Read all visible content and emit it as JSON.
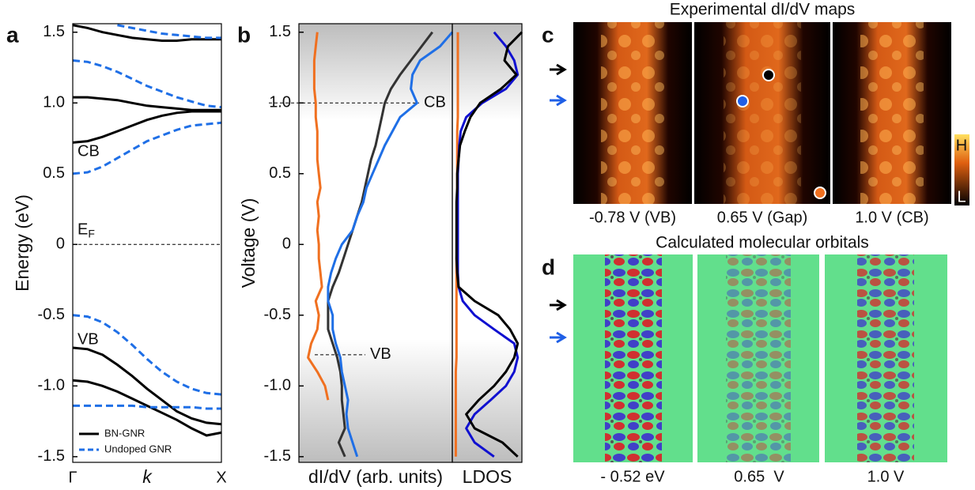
{
  "panel_labels": [
    "a",
    "b",
    "c",
    "d"
  ],
  "chart_data": [
    {
      "type": "line",
      "ylabel": "Energy (eV)",
      "xlabel": "k",
      "x": [
        0,
        0.1,
        0.2,
        0.3,
        0.4,
        0.5,
        0.6,
        0.7,
        0.8,
        0.9,
        1
      ],
      "xlim": [
        0,
        1
      ],
      "xticks": [
        {
          "value": 0,
          "label": "Γ"
        },
        {
          "value": 1,
          "label": "X"
        }
      ],
      "ylim": [
        -1.54,
        1.56
      ],
      "yticks": [
        -1.5,
        {
          "value": -1,
          "label": "-1.0"
        },
        -0.5,
        0,
        0.5,
        {
          "value": 1,
          "label": "1.0"
        },
        1.5
      ],
      "fermi": {
        "value": 0,
        "label": "E",
        "sub": "F"
      },
      "annotations": [
        "CB",
        "VB"
      ],
      "legend": "lower left",
      "series": [
        {
          "name": "BN-GNR",
          "color": "#000000",
          "dash": false,
          "bands": [
            [
              1.55,
              1.53,
              1.5,
              1.48,
              1.46,
              1.45,
              1.44,
              1.44,
              1.45,
              1.45,
              1.45
            ],
            [
              1.04,
              1.04,
              1.03,
              1.02,
              1.0,
              0.98,
              0.97,
              0.96,
              0.95,
              0.95,
              0.95
            ],
            [
              0.72,
              0.73,
              0.76,
              0.8,
              0.84,
              0.88,
              0.91,
              0.93,
              0.94,
              0.94,
              0.94
            ],
            [
              -0.73,
              -0.74,
              -0.78,
              -0.85,
              -0.93,
              -1.02,
              -1.1,
              -1.18,
              -1.23,
              -1.26,
              -1.27
            ],
            [
              -0.96,
              -0.97,
              -1.0,
              -1.04,
              -1.09,
              -1.14,
              -1.19,
              -1.24,
              -1.3,
              -1.35,
              -1.33
            ]
          ]
        },
        {
          "name": "Undoped GNR",
          "color": "#1f6fe6",
          "dash": true,
          "bands": [
            [
              null,
              null,
              null,
              1.55,
              1.53,
              1.51,
              1.49,
              1.48,
              1.47,
              1.46,
              1.46
            ],
            [
              1.3,
              1.29,
              1.26,
              1.22,
              1.17,
              1.12,
              1.08,
              1.04,
              1.01,
              0.98,
              0.97
            ],
            [
              0.5,
              0.51,
              0.55,
              0.61,
              0.67,
              0.73,
              0.77,
              0.81,
              0.84,
              0.85,
              0.86
            ],
            [
              -0.5,
              -0.51,
              -0.55,
              -0.62,
              -0.71,
              -0.81,
              -0.9,
              -0.97,
              -1.02,
              -1.05,
              -1.06
            ],
            [
              -1.14,
              -1.14,
              -1.14,
              -1.14,
              -1.14,
              -1.15,
              -1.15,
              -1.15,
              -1.15,
              -1.16,
              -1.16
            ]
          ]
        }
      ]
    },
    {
      "type": "profile",
      "ylabel": "Voltage (V)",
      "xlabel": "dI/dV (arb. units)",
      "voltages": [
        -1.5,
        -1.4,
        -1.3,
        -1.2,
        -1.1,
        -1.0,
        -0.9,
        -0.8,
        -0.7,
        -0.6,
        -0.5,
        -0.4,
        -0.3,
        -0.2,
        -0.1,
        0,
        0.1,
        0.2,
        0.3,
        0.4,
        0.5,
        0.6,
        0.7,
        0.8,
        0.9,
        1.0,
        1.1,
        1.2,
        1.3,
        1.4,
        1.5
      ],
      "xlim": [
        0,
        100
      ],
      "ylim": [
        -1.54,
        1.56
      ],
      "yticks": [
        -1.5,
        {
          "value": -1,
          "label": "-1.0"
        },
        -0.5,
        0,
        0.5,
        {
          "value": 1,
          "label": "1.0"
        },
        1.5
      ],
      "hlines": [
        {
          "value": 1.0,
          "label": "CB"
        },
        {
          "value": -0.78,
          "label": "VB"
        }
      ],
      "series": [
        {
          "color": "#f07020",
          "values": [
            null,
            null,
            null,
            null,
            19,
            17,
            12,
            6,
            8,
            12,
            13,
            11,
            15,
            14,
            13,
            13,
            12,
            13,
            12,
            14,
            13,
            12,
            12,
            12,
            11,
            11,
            10,
            10,
            10,
            11,
            12
          ]
        },
        {
          "color": "#333333",
          "values": [
            30,
            26,
            30,
            29,
            28,
            28,
            27,
            25,
            22,
            19,
            19,
            19,
            22,
            26,
            29,
            32,
            35,
            38,
            41,
            43,
            45,
            47,
            50,
            52,
            54,
            56,
            60,
            66,
            73,
            80,
            87
          ]
        },
        {
          "color": "#1f6fe6",
          "values": [
            38,
            35,
            32,
            31,
            32,
            30,
            28,
            27,
            24,
            22,
            22,
            19,
            19,
            21,
            24,
            28,
            35,
            38,
            42,
            44,
            48,
            52,
            56,
            61,
            66,
            77,
            73,
            74,
            79,
            92,
            100
          ]
        }
      ]
    },
    {
      "type": "profile",
      "xlabel": "LDOS",
      "voltages": [
        -1.5,
        -1.4,
        -1.3,
        -1.2,
        -1.1,
        -1.0,
        -0.9,
        -0.8,
        -0.7,
        -0.6,
        -0.5,
        -0.4,
        -0.3,
        -0.2,
        -0.1,
        0,
        0.1,
        0.2,
        0.3,
        0.4,
        0.5,
        0.6,
        0.7,
        0.8,
        0.9,
        1.0,
        1.1,
        1.2,
        1.3,
        1.4,
        1.5
      ],
      "xlim": [
        0,
        100
      ],
      "ylim": [
        -1.54,
        1.56
      ],
      "series": [
        {
          "color": "#f07020",
          "values": [
            5,
            5,
            5,
            5,
            5,
            5,
            5,
            6,
            6,
            6,
            6,
            6,
            6,
            6,
            6,
            7,
            7,
            7,
            7,
            7,
            7,
            7,
            7,
            7,
            8,
            8,
            8,
            8,
            8,
            8,
            8
          ]
        },
        {
          "color": "#1010d0",
          "values": [
            60,
            32,
            20,
            32,
            55,
            77,
            89,
            94,
            89,
            60,
            32,
            15,
            9,
            8,
            8,
            8,
            8,
            8,
            8,
            8,
            8,
            9,
            10,
            12,
            20,
            43,
            77,
            94,
            89,
            77,
            60
          ]
        },
        {
          "color": "#000000",
          "values": [
            94,
            72,
            32,
            20,
            38,
            60,
            77,
            89,
            94,
            83,
            66,
            32,
            9,
            7,
            6,
            6,
            6,
            6,
            6,
            7,
            7,
            9,
            11,
            18,
            26,
            40,
            70,
            92,
            75,
            80,
            100
          ]
        }
      ]
    }
  ],
  "maps": {
    "title": "Experimental dI/dV maps",
    "labels": [
      "-0.78 V (VB)",
      "0.65 V (Gap)",
      "1.0 V (CB)"
    ],
    "colorbar": [
      "H",
      "L"
    ]
  },
  "orbitals": {
    "title": "Calculated molecular orbitals",
    "labels": [
      "- 0.52 eV",
      "0.65  V",
      "1.0 V"
    ]
  }
}
